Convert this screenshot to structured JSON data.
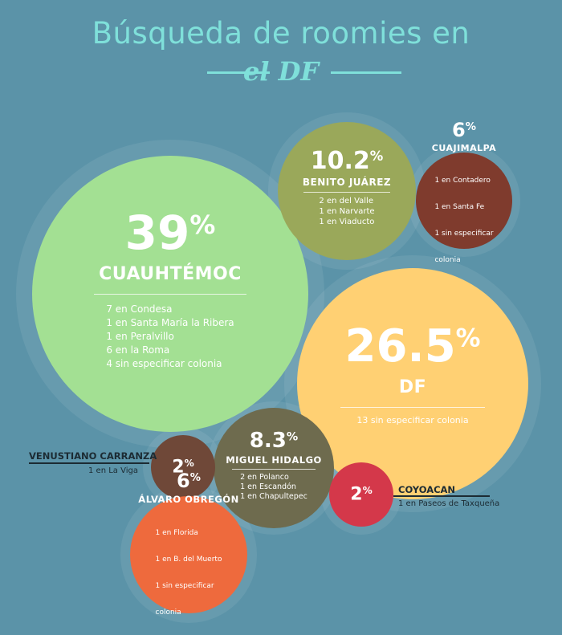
{
  "header": {
    "title": "Búsqueda de roomies en",
    "subtitle": "el DF"
  },
  "colors": {
    "background": "#5b93a8",
    "title": "#7fe0da",
    "cuauhtemoc": "#a3e093",
    "df": "#ffd073",
    "benito_juarez": "#9aa85a",
    "cuajimalpa": "#7f3b2d",
    "venustiano_carranza": "#6f4838",
    "miguel_hidalgo": "#6e6b4e",
    "coyoacan": "#d4384a",
    "alvaro_obregon": "#ee6a3d"
  },
  "chart_data": {
    "type": "bubble",
    "categories": [
      "Cuauhtémoc",
      "DF",
      "Benito Juárez",
      "Miguel Hidalgo",
      "Cuajimalpa",
      "Álvaro Obregón",
      "Venustiano Carranza",
      "Coyoacán"
    ],
    "values": [
      39,
      26.5,
      10.2,
      8.3,
      6,
      6,
      2,
      2
    ]
  },
  "bubbles": {
    "cuauhtemoc": {
      "pct": "39",
      "name": "CUAUHTÉMOC",
      "items": [
        "7  en Condesa",
        "1  en Santa María la Ribera",
        "1  en Peralvillo",
        "6  en la Roma",
        "4  sin especificar colonia"
      ]
    },
    "df": {
      "pct": "26.5",
      "name": "DF",
      "items": [
        "13  sin especificar colonia"
      ]
    },
    "benito_juarez": {
      "pct": "10.2",
      "name": "BENITO JUÁREZ",
      "items": [
        "2  en del Valle",
        "1  en Narvarte",
        "1  en Viaducto"
      ]
    },
    "cuajimalpa": {
      "pct": "6",
      "name": "CUAJIMALPA",
      "items": [
        "1  en Contadero",
        "1  en Santa Fe",
        "1  sin especificar",
        "    colonia"
      ]
    },
    "miguel_hidalgo": {
      "pct": "8.3",
      "name": "MIGUEL HIDALGO",
      "items": [
        "2  en Polanco",
        "1  en Escandón",
        "1  en Chapultepec"
      ]
    },
    "venustiano_carranza": {
      "pct": "2",
      "name": "VENUSTIANO CARRANZA",
      "items": [
        "1 en La Viga"
      ]
    },
    "coyoacan": {
      "pct": "2",
      "name": "COYOACAN",
      "items": [
        "1 en Paseos de Taxqueña"
      ]
    },
    "alvaro_obregon": {
      "pct": "6",
      "name": "ÁLVARO OBREGÓN",
      "items": [
        "1  en Florida",
        "1  en B. del Muerto",
        "1  sin especificar",
        "    colonia"
      ]
    }
  },
  "percent_sign": "%"
}
